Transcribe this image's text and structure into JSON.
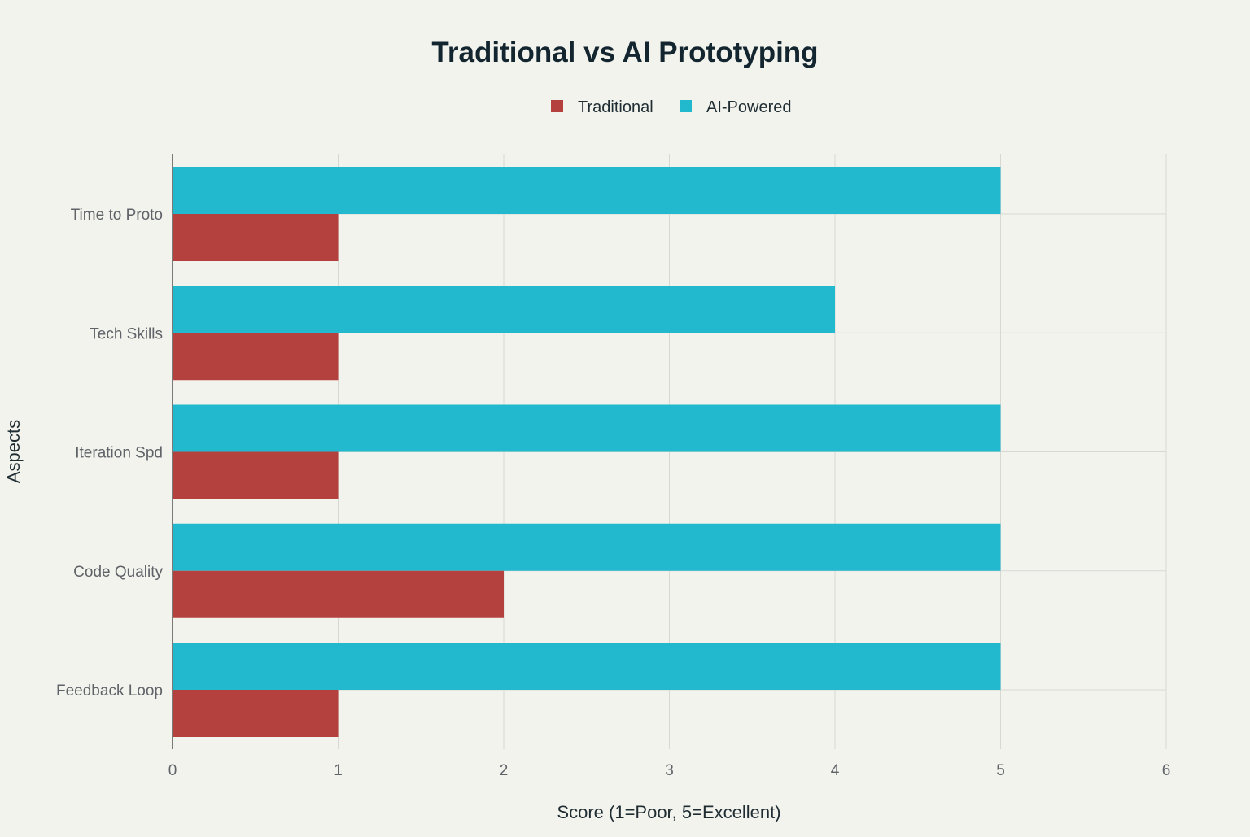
{
  "chart_data": {
    "type": "bar",
    "orientation": "horizontal",
    "title": "Traditional vs AI Prototyping",
    "xlabel": "Score (1=Poor, 5=Excellent)",
    "ylabel": "Aspects",
    "categories": [
      "Time to Proto",
      "Tech Skills",
      "Iteration Spd",
      "Code Quality",
      "Feedback Loop"
    ],
    "series": [
      {
        "name": "Traditional",
        "color": "#b5413f",
        "values": [
          1,
          1,
          1,
          2,
          1
        ]
      },
      {
        "name": "AI-Powered",
        "color": "#22b8cd",
        "values": [
          5,
          4,
          5,
          5,
          5
        ]
      }
    ],
    "xlim": [
      0,
      6
    ],
    "xticks": [
      "0",
      "1",
      "2",
      "3",
      "4",
      "5",
      "6"
    ],
    "grid": true,
    "legend_position": "top-center"
  }
}
